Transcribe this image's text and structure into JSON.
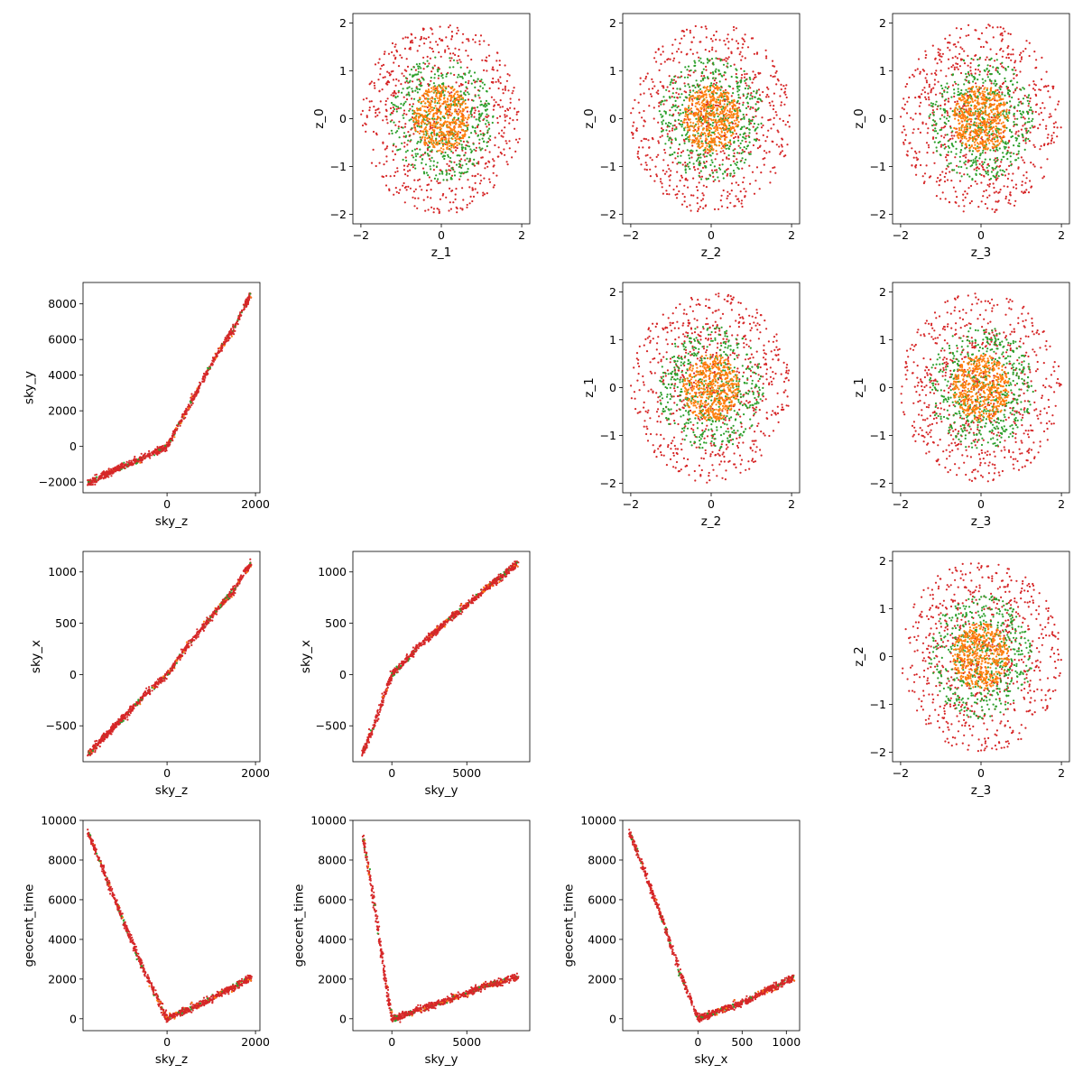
{
  "figure": {
    "description_colors": {
      "red": "#d62728",
      "green": "#2ca02c",
      "orange": "#ff7f0e"
    }
  },
  "chart_data": [
    {
      "type": "scatter",
      "xlabel": "z_1",
      "ylabel": "z_0",
      "xlim": [
        -2.2,
        2.2
      ],
      "ylim": [
        -2.2,
        2.2
      ],
      "xticks": [
        -2,
        0,
        2
      ],
      "yticks": [
        -2,
        -1,
        0,
        1,
        2
      ],
      "pattern": "rings",
      "series": [
        {
          "color": "#d62728",
          "distribution": "uniform disc radius 2",
          "n": 700
        },
        {
          "color": "#2ca02c",
          "distribution": "uniform disc radius 1.3",
          "n": 500
        },
        {
          "color": "#ff7f0e",
          "distribution": "uniform disc radius 0.7",
          "n": 500
        }
      ]
    },
    {
      "type": "scatter",
      "xlabel": "z_2",
      "ylabel": "z_0",
      "xlim": [
        -2.2,
        2.2
      ],
      "ylim": [
        -2.2,
        2.2
      ],
      "xticks": [
        -2,
        0,
        2
      ],
      "yticks": [
        -2,
        -1,
        0,
        1,
        2
      ],
      "pattern": "rings",
      "series": [
        {
          "color": "#d62728",
          "distribution": "uniform disc radius 2",
          "n": 700
        },
        {
          "color": "#2ca02c",
          "distribution": "uniform disc radius 1.3",
          "n": 500
        },
        {
          "color": "#ff7f0e",
          "distribution": "uniform disc radius 0.7",
          "n": 500
        }
      ]
    },
    {
      "type": "scatter",
      "xlabel": "z_3",
      "ylabel": "z_0",
      "xlim": [
        -2.2,
        2.2
      ],
      "ylim": [
        -2.2,
        2.2
      ],
      "xticks": [
        -2,
        0,
        2
      ],
      "yticks": [
        -2,
        -1,
        0,
        1,
        2
      ],
      "pattern": "rings",
      "series": [
        {
          "color": "#d62728",
          "distribution": "uniform disc radius 2",
          "n": 700
        },
        {
          "color": "#2ca02c",
          "distribution": "uniform disc radius 1.3",
          "n": 500
        },
        {
          "color": "#ff7f0e",
          "distribution": "uniform disc radius 0.7",
          "n": 500
        }
      ]
    },
    {
      "type": "scatter",
      "xlabel": "sky_z",
      "ylabel": "sky_y",
      "xlim": [
        -1900,
        2100
      ],
      "ylim": [
        -2600,
        9200
      ],
      "xticks": [
        0,
        2000
      ],
      "yticks": [
        -2000,
        0,
        2000,
        4000,
        6000,
        8000
      ],
      "pattern": "curve",
      "curve_points": [
        [
          -1800,
          -2050
        ],
        [
          -1000,
          -1100
        ],
        [
          -500,
          -600
        ],
        [
          0,
          0
        ],
        [
          500,
          2300
        ],
        [
          1000,
          4600
        ],
        [
          1500,
          6600
        ],
        [
          1900,
          8600
        ]
      ],
      "series": [
        {
          "color": "#d62728"
        }
      ]
    },
    {
      "type": "scatter",
      "xlabel": "z_2",
      "ylabel": "z_1",
      "xlim": [
        -2.2,
        2.2
      ],
      "ylim": [
        -2.2,
        2.2
      ],
      "xticks": [
        -2,
        0,
        2
      ],
      "yticks": [
        -2,
        -1,
        0,
        1,
        2
      ],
      "pattern": "rings",
      "series": [
        {
          "color": "#d62728",
          "distribution": "uniform disc radius 2",
          "n": 700
        },
        {
          "color": "#2ca02c",
          "distribution": "uniform disc radius 1.3",
          "n": 500
        },
        {
          "color": "#ff7f0e",
          "distribution": "uniform disc radius 0.7",
          "n": 500
        }
      ]
    },
    {
      "type": "scatter",
      "xlabel": "z_3",
      "ylabel": "z_1",
      "xlim": [
        -2.2,
        2.2
      ],
      "ylim": [
        -2.2,
        2.2
      ],
      "xticks": [
        -2,
        0,
        2
      ],
      "yticks": [
        -2,
        -1,
        0,
        1,
        2
      ],
      "pattern": "rings",
      "series": [
        {
          "color": "#d62728",
          "distribution": "uniform disc radius 2",
          "n": 700
        },
        {
          "color": "#2ca02c",
          "distribution": "uniform disc radius 1.3",
          "n": 500
        },
        {
          "color": "#ff7f0e",
          "distribution": "uniform disc radius 0.7",
          "n": 500
        }
      ]
    },
    {
      "type": "scatter",
      "xlabel": "sky_z",
      "ylabel": "sky_x",
      "xlim": [
        -1900,
        2100
      ],
      "ylim": [
        -850,
        1200
      ],
      "xticks": [
        0,
        2000
      ],
      "yticks": [
        -500,
        0,
        500,
        1000
      ],
      "pattern": "curve",
      "curve_points": [
        [
          -1800,
          -780
        ],
        [
          -1000,
          -420
        ],
        [
          -500,
          -200
        ],
        [
          0,
          0
        ],
        [
          500,
          300
        ],
        [
          1000,
          560
        ],
        [
          1500,
          820
        ],
        [
          1900,
          1090
        ]
      ],
      "series": [
        {
          "color": "#d62728"
        }
      ]
    },
    {
      "type": "scatter",
      "xlabel": "sky_y",
      "ylabel": "sky_x",
      "xlim": [
        -2600,
        9200
      ],
      "ylim": [
        -850,
        1200
      ],
      "xticks": [
        0,
        5000
      ],
      "yticks": [
        -500,
        0,
        500,
        1000
      ],
      "pattern": "curve",
      "curve_points": [
        [
          -2000,
          -780
        ],
        [
          -1000,
          -420
        ],
        [
          -500,
          -200
        ],
        [
          0,
          0
        ],
        [
          2000,
          300
        ],
        [
          4000,
          560
        ],
        [
          6000,
          800
        ],
        [
          8400,
          1090
        ]
      ],
      "series": [
        {
          "color": "#d62728"
        }
      ]
    },
    {
      "type": "scatter",
      "xlabel": "z_3",
      "ylabel": "z_2",
      "xlim": [
        -2.2,
        2.2
      ],
      "ylim": [
        -2.2,
        2.2
      ],
      "xticks": [
        -2,
        0,
        2
      ],
      "yticks": [
        -2,
        -1,
        0,
        1,
        2
      ],
      "pattern": "rings",
      "series": [
        {
          "color": "#d62728",
          "distribution": "uniform disc radius 2",
          "n": 700
        },
        {
          "color": "#2ca02c",
          "distribution": "uniform disc radius 1.3",
          "n": 500
        },
        {
          "color": "#ff7f0e",
          "distribution": "uniform disc radius 0.7",
          "n": 500
        }
      ]
    },
    {
      "type": "scatter",
      "xlabel": "sky_z",
      "ylabel": "geocent_time",
      "xlim": [
        -1900,
        2100
      ],
      "ylim": [
        -600,
        10000
      ],
      "xticks": [
        0,
        2000
      ],
      "yticks": [
        0,
        2000,
        4000,
        6000,
        8000,
        10000
      ],
      "pattern": "curve",
      "curve_points": [
        [
          -1800,
          9500
        ],
        [
          -1000,
          5000
        ],
        [
          -500,
          2300
        ],
        [
          0,
          0
        ],
        [
          500,
          500
        ],
        [
          1000,
          1000
        ],
        [
          1500,
          1600
        ],
        [
          1900,
          2100
        ]
      ],
      "series": [
        {
          "color": "#d62728"
        }
      ]
    },
    {
      "type": "scatter",
      "xlabel": "sky_y",
      "ylabel": "geocent_time",
      "xlim": [
        -2600,
        9200
      ],
      "ylim": [
        -600,
        10000
      ],
      "xticks": [
        0,
        5000
      ],
      "yticks": [
        0,
        2000,
        4000,
        6000,
        8000,
        10000
      ],
      "pattern": "curve",
      "curve_points": [
        [
          -2000,
          9500
        ],
        [
          -1000,
          5000
        ],
        [
          -500,
          2300
        ],
        [
          0,
          0
        ],
        [
          2000,
          500
        ],
        [
          4000,
          1000
        ],
        [
          6000,
          1600
        ],
        [
          8400,
          2100
        ]
      ],
      "series": [
        {
          "color": "#d62728"
        }
      ]
    },
    {
      "type": "scatter",
      "xlabel": "sky_x",
      "ylabel": "geocent_time",
      "xlim": [
        -850,
        1150
      ],
      "ylim": [
        -600,
        10000
      ],
      "xticks": [
        0,
        500,
        1000
      ],
      "yticks": [
        0,
        2000,
        4000,
        6000,
        8000,
        10000
      ],
      "pattern": "curve",
      "curve_points": [
        [
          -780,
          9500
        ],
        [
          -400,
          5000
        ],
        [
          -200,
          2300
        ],
        [
          0,
          0
        ],
        [
          300,
          500
        ],
        [
          600,
          1000
        ],
        [
          850,
          1600
        ],
        [
          1090,
          2100
        ]
      ],
      "series": [
        {
          "color": "#d62728"
        }
      ]
    }
  ]
}
